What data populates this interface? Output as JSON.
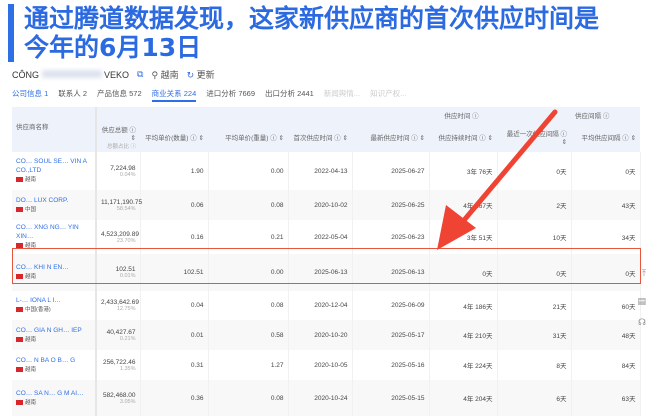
{
  "headline": {
    "line1": "通过腾道数据发现，这家新供应商的首次供应时间是",
    "line2": "今年的6月13日"
  },
  "company": {
    "name_start": "CÔNG",
    "name_end": "VEKO",
    "country": "越南",
    "refresh": "更新"
  },
  "tabs": [
    {
      "label": "公司信息 1",
      "style": "blue"
    },
    {
      "label": "联系人 2",
      "style": ""
    },
    {
      "label": "产品信息 572",
      "style": ""
    },
    {
      "label": "商业关系 224",
      "style": "active"
    },
    {
      "label": "进口分析 7669",
      "style": ""
    },
    {
      "label": "出口分析 2441",
      "style": ""
    },
    {
      "label": "新闻舆情...",
      "style": "dim"
    },
    {
      "label": "知识产权...",
      "style": "dim"
    }
  ],
  "table": {
    "group_headers": {
      "time": "供应时间 ⓘ",
      "interval": "供应间隔 ⓘ"
    },
    "columns": [
      "供应商名称",
      "供应总额 ⓘ ⇕",
      "平均单价(数量) ⓘ ⇕",
      "平均单价(重量) ⓘ ⇕",
      "首次供应时间 ⓘ ⇕",
      "最新供应时间 ⓘ ⇕",
      "供应持续时间 ⓘ ⇕",
      "最近一次供应间隔 ⓘ ⇕",
      "平均供应间隔 ⓘ ⇕"
    ],
    "total_sub": "总额占比 ⓘ",
    "rows": [
      {
        "name": "CO… SOUL SE… VIN A CO.,LTD",
        "country": "越南",
        "total": "7,224.98",
        "share": "0.04%",
        "avg_qty": "1.90",
        "avg_wt": "0.00",
        "first": "2022-04-13",
        "latest": "2025-06-27",
        "duration": "3年 76天",
        "recent": "0天",
        "avg_int": "0天"
      },
      {
        "name": "DO… LUX CORP.",
        "country": "中国",
        "total": "11,171,190.75",
        "share": "58.54%",
        "avg_qty": "0.06",
        "avg_wt": "0.08",
        "first": "2020-10-02",
        "latest": "2025-06-25",
        "duration": "4年 267天",
        "recent": "2天",
        "avg_int": "43天"
      },
      {
        "name": "CO… XNG NG… YIN XIN…",
        "country": "越南",
        "total": "4,523,209.89",
        "share": "23.70%",
        "avg_qty": "0.16",
        "avg_wt": "0.21",
        "first": "2022-05-04",
        "latest": "2025-06-23",
        "duration": "3年 51天",
        "recent": "10天",
        "avg_int": "34天"
      },
      {
        "name": "CO… KHI N EN…",
        "country": "越南",
        "total": "102.51",
        "share": "0.01%",
        "avg_qty": "102.51",
        "avg_wt": "0.00",
        "first": "2025-06-13",
        "latest": "2025-06-13",
        "duration": "0天",
        "recent": "0天",
        "avg_int": "0天"
      },
      {
        "name": "L-… IONA L I…",
        "country": "中国(香港)",
        "total": "2,433,642.69",
        "share": "12.75%",
        "avg_qty": "0.04",
        "avg_wt": "0.08",
        "first": "2020-12-04",
        "latest": "2025-06-09",
        "duration": "4年 186天",
        "recent": "21天",
        "avg_int": "60天"
      },
      {
        "name": "CO… GIA N GH… IEP",
        "country": "越南",
        "total": "40,427.67",
        "share": "0.21%",
        "avg_qty": "0.01",
        "avg_wt": "0.58",
        "first": "2020-10-20",
        "latest": "2025-05-17",
        "duration": "4年 210天",
        "recent": "31天",
        "avg_int": "48天"
      },
      {
        "name": "CO… N BA O B… G",
        "country": "越南",
        "total": "256,722.46",
        "share": "1.35%",
        "avg_qty": "0.31",
        "avg_wt": "1.27",
        "first": "2020-10-05",
        "latest": "2025-05-16",
        "duration": "4年 224天",
        "recent": "8天",
        "avg_int": "84天"
      },
      {
        "name": "CO… SA N… G M AI…",
        "country": "越南",
        "total": "582,468.00",
        "share": "3.05%",
        "avg_qty": "0.36",
        "avg_wt": "0.08",
        "first": "2020-10-24",
        "latest": "2025-05-15",
        "duration": "4年 204天",
        "recent": "6天",
        "avg_int": "63天"
      }
    ]
  },
  "colors": {
    "accent": "#2f6fe6",
    "highlight": "#e8553f"
  }
}
